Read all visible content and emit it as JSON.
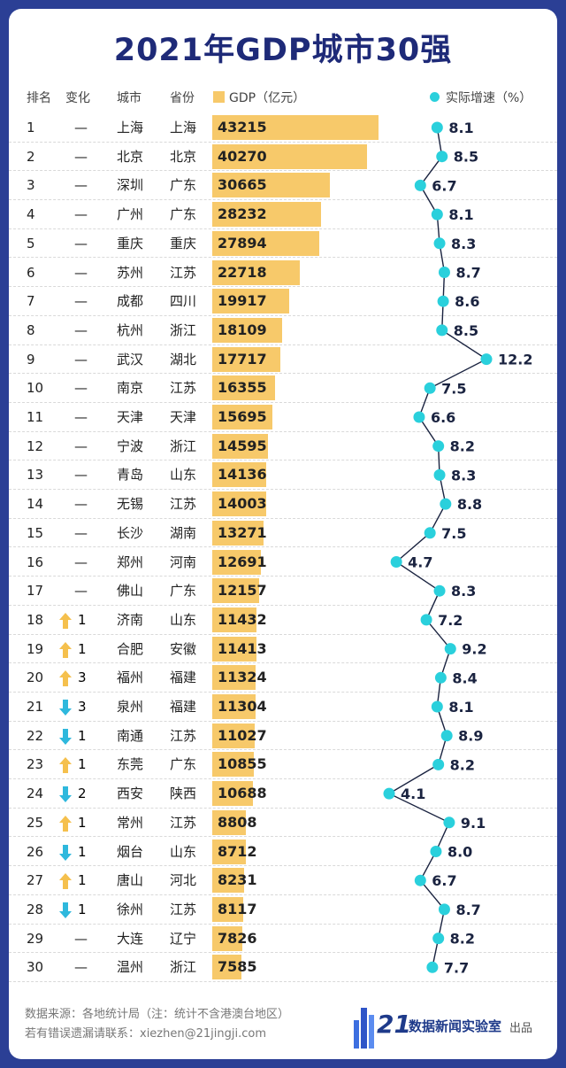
{
  "title": "2021年GDP城市30强",
  "headers": {
    "rank": "排名",
    "change": "变化",
    "city": "城市",
    "province": "省份",
    "gdp": "GDP（亿元）",
    "growth": "实际增速（%）"
  },
  "colors": {
    "bar": "#f7c96a",
    "dot": "#2ad0dc",
    "up": "#f5c04d",
    "down": "#2eb8dd",
    "title": "#1e2a78",
    "frame": "#2b3f95"
  },
  "chart_data": {
    "type": "table",
    "title": "2021年GDP城市30强",
    "columns": [
      "排名",
      "变化",
      "城市",
      "省份",
      "GDP（亿元）",
      "实际增速（%）"
    ],
    "gdp_max_scale": 43215,
    "growth_range": [
      4.1,
      12.2
    ],
    "rows": [
      {
        "rank": "1",
        "dir": "none",
        "change": "—",
        "city": "上海",
        "province": "上海",
        "gdp": 43215,
        "growth": 8.1
      },
      {
        "rank": "2",
        "dir": "none",
        "change": "—",
        "city": "北京",
        "province": "北京",
        "gdp": 40270,
        "growth": 8.5
      },
      {
        "rank": "3",
        "dir": "none",
        "change": "—",
        "city": "深圳",
        "province": "广东",
        "gdp": 30665,
        "growth": 6.7
      },
      {
        "rank": "4",
        "dir": "none",
        "change": "—",
        "city": "广州",
        "province": "广东",
        "gdp": 28232,
        "growth": 8.1
      },
      {
        "rank": "5",
        "dir": "none",
        "change": "—",
        "city": "重庆",
        "province": "重庆",
        "gdp": 27894,
        "growth": 8.3
      },
      {
        "rank": "6",
        "dir": "none",
        "change": "—",
        "city": "苏州",
        "province": "江苏",
        "gdp": 22718,
        "growth": 8.7
      },
      {
        "rank": "7",
        "dir": "none",
        "change": "—",
        "city": "成都",
        "province": "四川",
        "gdp": 19917,
        "growth": 8.6
      },
      {
        "rank": "8",
        "dir": "none",
        "change": "—",
        "city": "杭州",
        "province": "浙江",
        "gdp": 18109,
        "growth": 8.5
      },
      {
        "rank": "9",
        "dir": "none",
        "change": "—",
        "city": "武汉",
        "province": "湖北",
        "gdp": 17717,
        "growth": 12.2
      },
      {
        "rank": "10",
        "dir": "none",
        "change": "—",
        "city": "南京",
        "province": "江苏",
        "gdp": 16355,
        "growth": 7.5
      },
      {
        "rank": "11",
        "dir": "none",
        "change": "—",
        "city": "天津",
        "province": "天津",
        "gdp": 15695,
        "growth": 6.6
      },
      {
        "rank": "12",
        "dir": "none",
        "change": "—",
        "city": "宁波",
        "province": "浙江",
        "gdp": 14595,
        "growth": 8.2
      },
      {
        "rank": "13",
        "dir": "none",
        "change": "—",
        "city": "青岛",
        "province": "山东",
        "gdp": 14136,
        "growth": 8.3
      },
      {
        "rank": "14",
        "dir": "none",
        "change": "—",
        "city": "无锡",
        "province": "江苏",
        "gdp": 14003,
        "growth": 8.8
      },
      {
        "rank": "15",
        "dir": "none",
        "change": "—",
        "city": "长沙",
        "province": "湖南",
        "gdp": 13271,
        "growth": 7.5
      },
      {
        "rank": "16",
        "dir": "none",
        "change": "—",
        "city": "郑州",
        "province": "河南",
        "gdp": 12691,
        "growth": 4.7
      },
      {
        "rank": "17",
        "dir": "none",
        "change": "—",
        "city": "佛山",
        "province": "广东",
        "gdp": 12157,
        "growth": 8.3
      },
      {
        "rank": "18",
        "dir": "up",
        "change": "1",
        "city": "济南",
        "province": "山东",
        "gdp": 11432,
        "growth": 7.2
      },
      {
        "rank": "19",
        "dir": "up",
        "change": "1",
        "city": "合肥",
        "province": "安徽",
        "gdp": 11413,
        "growth": 9.2
      },
      {
        "rank": "20",
        "dir": "up",
        "change": "3",
        "city": "福州",
        "province": "福建",
        "gdp": 11324,
        "growth": 8.4
      },
      {
        "rank": "21",
        "dir": "down",
        "change": "3",
        "city": "泉州",
        "province": "福建",
        "gdp": 11304,
        "growth": 8.1
      },
      {
        "rank": "22",
        "dir": "down",
        "change": "1",
        "city": "南通",
        "province": "江苏",
        "gdp": 11027,
        "growth": 8.9
      },
      {
        "rank": "23",
        "dir": "up",
        "change": "1",
        "city": "东莞",
        "province": "广东",
        "gdp": 10855,
        "growth": 8.2
      },
      {
        "rank": "24",
        "dir": "down",
        "change": "2",
        "city": "西安",
        "province": "陕西",
        "gdp": 10688,
        "growth": 4.1
      },
      {
        "rank": "25",
        "dir": "up",
        "change": "1",
        "city": "常州",
        "province": "江苏",
        "gdp": 8808,
        "growth": 9.1
      },
      {
        "rank": "26",
        "dir": "down",
        "change": "1",
        "city": "烟台",
        "province": "山东",
        "gdp": 8712,
        "growth": 8.0
      },
      {
        "rank": "27",
        "dir": "up",
        "change": "1",
        "city": "唐山",
        "province": "河北",
        "gdp": 8231,
        "growth": 6.7
      },
      {
        "rank": "28",
        "dir": "down",
        "change": "1",
        "city": "徐州",
        "province": "江苏",
        "gdp": 8117,
        "growth": 8.7
      },
      {
        "rank": "29",
        "dir": "none",
        "change": "—",
        "city": "大连",
        "province": "辽宁",
        "gdp": 7826,
        "growth": 8.2
      },
      {
        "rank": "30",
        "dir": "none",
        "change": "—",
        "city": "温州",
        "province": "浙江",
        "gdp": 7585,
        "growth": 7.7
      }
    ]
  },
  "footer": {
    "source": "数据来源：各地统计局（注：统计不含港澳台地区）",
    "contact": "若有错误遗漏请联系：xiezhen@21jingji.com",
    "logo_number": "21",
    "logo_text": "数据新闻实验室",
    "publish": "出品"
  }
}
